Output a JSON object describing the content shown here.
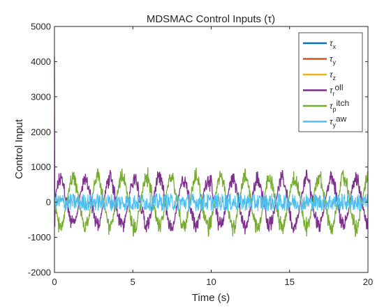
{
  "chart_data": {
    "type": "line",
    "title": "MDSMAC Control Inputs (τ)",
    "xlabel": "Time (s)",
    "ylabel": "Control Input",
    "xlim": [
      0,
      20
    ],
    "ylim": [
      -2000,
      5000
    ],
    "xticks": [
      0,
      5,
      10,
      15,
      20
    ],
    "yticks": [
      -2000,
      -1000,
      0,
      1000,
      2000,
      3000,
      4000,
      5000
    ],
    "grid": false,
    "legend_position": "top-right",
    "series": [
      {
        "name": "τ",
        "sub": "x",
        "sup": "",
        "color": "#0072BD",
        "shape": "flat",
        "value": 0
      },
      {
        "name": "τ",
        "sub": "y",
        "sup": "",
        "color": "#D95319",
        "shape": "flat",
        "value": 0
      },
      {
        "name": "τ",
        "sub": "z",
        "sup": "",
        "color": "#EDB120",
        "shape": "flat",
        "value": 0
      },
      {
        "name": "τ",
        "sub": "r",
        "sup": "oll",
        "color": "#7E2F8E",
        "shape": "oscillation",
        "amplitude": 850,
        "period": 1.57,
        "phase": 0,
        "initial_spike": 4150
      },
      {
        "name": "τ",
        "sub": "p",
        "sup": "itch",
        "color": "#77AC30",
        "shape": "oscillation",
        "amplitude": 900,
        "period": 1.57,
        "phase": 3.14159
      },
      {
        "name": "τ",
        "sub": "y",
        "sup": "aw",
        "color": "#4DBEEE",
        "shape": "noise",
        "amplitude": 250
      }
    ]
  }
}
